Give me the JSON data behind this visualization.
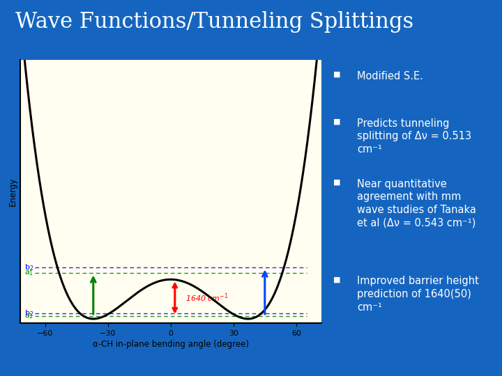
{
  "title": "Wave Functions/Tunneling Splittings",
  "title_fontsize": 22,
  "bg_color": "#1565C0",
  "panel_bg": "#FFFEF0",
  "text_color": "white",
  "bullet_points_raw": [
    [
      "Modified S.E."
    ],
    [
      "Predicts tunneling splitting of Δν = 0.513 cm",
      "-1"
    ],
    [
      "Near quantitative agreement with mm wave studies of Tanaka et al (Δν = 0.543 cm",
      "-1",
      ")"
    ],
    [
      "Improved barrier height prediction of 1640(50) cm",
      "-1"
    ]
  ],
  "xlabel": "α-CH in-plane bending angle (degree)",
  "ylabel": "Energy",
  "xticks": [
    -60,
    -30,
    0,
    30,
    60
  ],
  "barrier_label": "1640 cm",
  "barrier_label_sup": "-1"
}
